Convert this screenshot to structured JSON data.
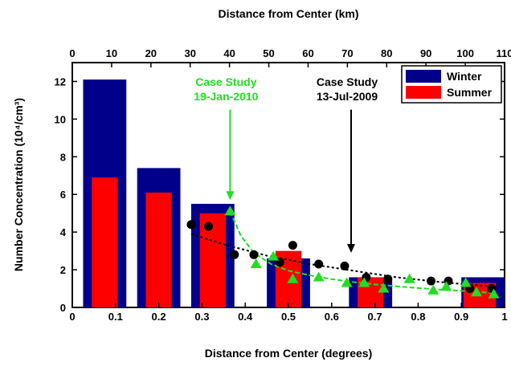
{
  "chart_data": {
    "type": "bar",
    "xlabel": "Distance from Center (degrees)",
    "ylabel": "Number Concentration (10⁴/cm³)",
    "x2label": "Distance from Center (km)",
    "xlim": [
      0,
      1.0
    ],
    "ylim": [
      0,
      13
    ],
    "x2lim": [
      0,
      110
    ],
    "xticks": [
      "0",
      "0.1",
      "0.2",
      "0.3",
      "0.4",
      "0.5",
      "0.6",
      "0.7",
      "0.8",
      "0.9",
      "1"
    ],
    "yticks": [
      "0",
      "2",
      "4",
      "6",
      "8",
      "10",
      "12"
    ],
    "x2ticks": [
      "0",
      "10",
      "20",
      "30",
      "40",
      "50",
      "60",
      "70",
      "80",
      "90",
      "100",
      "110"
    ],
    "grid": false,
    "legend_position": "top-right",
    "series": [
      {
        "name": "Winter",
        "kind": "bar",
        "color": "#00008b",
        "bins": [
          [
            0.025,
            0.125
          ],
          [
            0.15,
            0.25
          ],
          [
            0.275,
            0.375
          ],
          [
            0.45,
            0.55
          ],
          [
            0.64,
            0.74
          ],
          [
            0.9,
            1.0
          ]
        ],
        "values": [
          12.1,
          7.4,
          5.5,
          2.6,
          1.6,
          1.6
        ]
      },
      {
        "name": "Summer",
        "kind": "bar",
        "color": "#ff0000",
        "bins": [
          [
            0.045,
            0.105
          ],
          [
            0.17,
            0.23
          ],
          [
            0.295,
            0.355
          ],
          [
            0.47,
            0.53
          ],
          [
            0.66,
            0.72
          ],
          [
            0.905,
            0.98
          ]
        ],
        "values": [
          6.9,
          6.1,
          5.0,
          3.0,
          1.6,
          1.3
        ]
      },
      {
        "kind": "scatter",
        "color": "#000000",
        "marker": "circle",
        "x": [
          0.275,
          0.315,
          0.375,
          0.42,
          0.48,
          0.51,
          0.57,
          0.63,
          0.68,
          0.73,
          0.83,
          0.87,
          0.92,
          0.97
        ],
        "y": [
          4.4,
          4.3,
          2.8,
          2.8,
          2.4,
          3.3,
          2.3,
          2.2,
          1.6,
          1.5,
          1.4,
          1.4,
          1.0,
          1.0
        ],
        "fit_x": [
          0.275,
          0.35,
          0.45,
          0.55,
          0.65,
          0.75,
          0.85,
          0.95,
          0.98
        ],
        "fit_y": [
          3.9,
          3.35,
          2.75,
          2.3,
          1.95,
          1.6,
          1.35,
          1.15,
          1.1
        ]
      },
      {
        "kind": "scatter",
        "color": "#22dd22",
        "marker": "triangle",
        "x": [
          0.365,
          0.425,
          0.465,
          0.51,
          0.57,
          0.635,
          0.675,
          0.72,
          0.78,
          0.835,
          0.865,
          0.91,
          0.935,
          0.975
        ],
        "y": [
          5.1,
          2.3,
          2.7,
          1.5,
          1.6,
          1.3,
          1.3,
          1.0,
          1.5,
          0.9,
          1.1,
          1.3,
          0.8,
          0.7
        ],
        "fit_x": [
          0.365,
          0.39,
          0.42,
          0.46,
          0.5,
          0.55,
          0.6,
          0.65,
          0.7,
          0.75,
          0.8,
          0.85,
          0.9,
          0.95,
          0.98
        ],
        "fit_y": [
          5.1,
          3.8,
          2.9,
          2.3,
          1.95,
          1.7,
          1.5,
          1.35,
          1.22,
          1.12,
          1.03,
          0.95,
          0.88,
          0.8,
          0.75
        ]
      }
    ],
    "annotations": [
      {
        "text": "Case Study",
        "text2": "19-Jan-2010",
        "color": "#22dd22",
        "arrow_x": 0.365,
        "arrow_from_y": 10.5,
        "arrow_to_y": 5.7
      },
      {
        "text": "Case Study",
        "text2": "13-Jul-2009",
        "color": "#000000",
        "arrow_x": 0.645,
        "arrow_from_y": 10.5,
        "arrow_to_y": 2.9
      }
    ]
  }
}
